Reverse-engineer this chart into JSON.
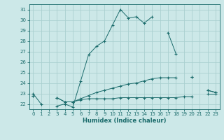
{
  "xlabel": "Humidex (Indice chaleur)",
  "ylabel": "",
  "bg_color": "#cce8e8",
  "grid_color": "#aacfcf",
  "line_color": "#1a6b6b",
  "xlim": [
    -0.5,
    23.5
  ],
  "ylim": [
    21.5,
    31.5
  ],
  "xticks": [
    0,
    1,
    2,
    3,
    4,
    5,
    6,
    7,
    8,
    9,
    10,
    11,
    12,
    13,
    14,
    15,
    16,
    17,
    18,
    19,
    20,
    21,
    22,
    23
  ],
  "yticks": [
    22,
    23,
    24,
    25,
    26,
    27,
    28,
    29,
    30,
    31
  ],
  "series": [
    {
      "x": [
        0,
        1,
        2,
        3,
        4,
        5,
        6,
        7,
        8,
        9,
        10,
        11,
        12,
        13,
        14,
        15,
        16,
        17,
        18,
        19,
        20,
        21,
        22,
        23
      ],
      "y": [
        23.0,
        22.0,
        null,
        21.8,
        22.0,
        21.7,
        24.2,
        26.7,
        27.5,
        28.0,
        29.5,
        31.0,
        30.2,
        30.3,
        29.7,
        30.3,
        null,
        28.8,
        26.8,
        null,
        24.6,
        null,
        23.3,
        23.1
      ]
    },
    {
      "x": [
        0,
        1,
        2,
        3,
        4,
        5,
        6,
        7,
        8,
        9,
        10,
        11,
        12,
        13,
        14,
        15,
        16,
        17,
        18,
        19,
        20,
        21,
        22,
        23
      ],
      "y": [
        22.8,
        null,
        null,
        22.6,
        22.2,
        22.2,
        22.5,
        22.8,
        23.1,
        23.3,
        23.5,
        23.7,
        23.9,
        24.0,
        24.2,
        24.4,
        24.5,
        24.5,
        24.5,
        null,
        24.6,
        null,
        23.3,
        23.1
      ]
    },
    {
      "x": [
        0,
        1,
        2,
        3,
        4,
        5,
        6,
        7,
        8,
        9,
        10,
        11,
        12,
        13,
        14,
        15,
        16,
        17,
        18,
        19,
        20,
        21,
        22,
        23
      ],
      "y": [
        22.8,
        null,
        null,
        22.6,
        22.2,
        22.2,
        22.4,
        22.5,
        22.5,
        22.5,
        22.5,
        22.6,
        22.6,
        22.6,
        22.6,
        22.6,
        22.6,
        22.6,
        22.6,
        22.7,
        22.7,
        null,
        23.0,
        23.0
      ]
    }
  ]
}
